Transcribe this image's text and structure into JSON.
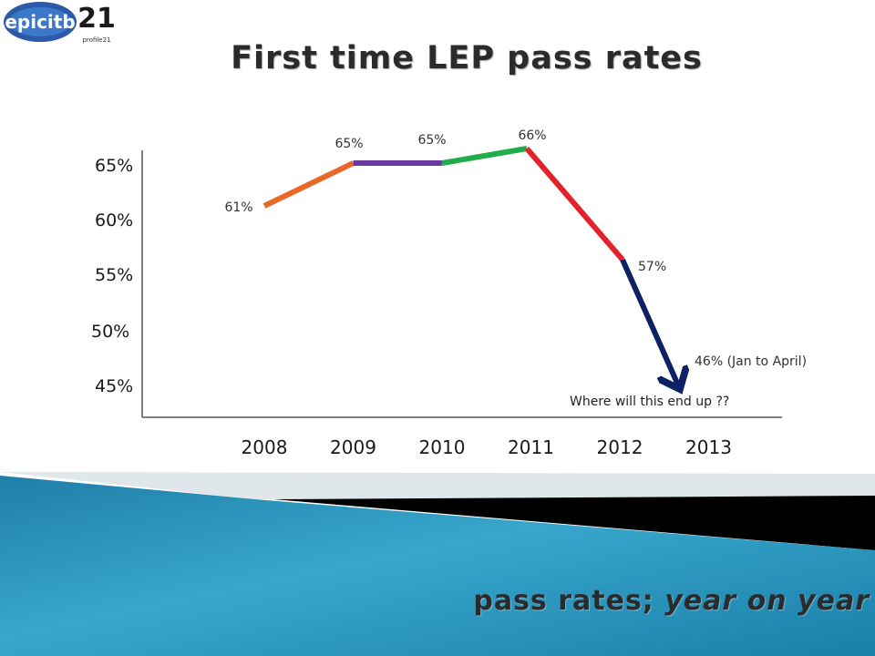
{
  "logo": {
    "brand_left": "epicitb",
    "brand_right_mark": "21",
    "brand_right_text": "profile21"
  },
  "title": "First time LEP pass rates",
  "subtitle": {
    "part1": "pass rates; ",
    "part2": "year on year"
  },
  "colors": {
    "seg_2008_2009": "#e8682a",
    "seg_2009_2010": "#6b3aa0",
    "seg_2010_2011": "#1fae4b",
    "seg_2011_2012": "#e2232b",
    "seg_2012_2013": "#0d2264",
    "banner_blue": "#1d87b0",
    "banner_black": "#000000"
  },
  "chart_data": {
    "type": "line",
    "title": "First time LEP pass rates",
    "categories": [
      "2008",
      "2009",
      "2010",
      "2011",
      "2012",
      "2013"
    ],
    "y_ticks": [
      "45%",
      "50%",
      "55%",
      "60%",
      "65%"
    ],
    "ylim": [
      45,
      65
    ],
    "points": [
      {
        "x": "2008",
        "y": 61,
        "label": "61%"
      },
      {
        "x": "2009",
        "y": 65,
        "label": "65%"
      },
      {
        "x": "2010",
        "y": 65,
        "label": "65%"
      },
      {
        "x": "2011",
        "y": 66,
        "label": "66%"
      },
      {
        "x": "2012",
        "y": 57,
        "label": "57%"
      },
      {
        "x": "2013",
        "y": 46,
        "label": "46% (Jan to April)"
      }
    ],
    "annotation": "Where will this end up ??",
    "grid": false,
    "last_segment_arrow": true
  }
}
